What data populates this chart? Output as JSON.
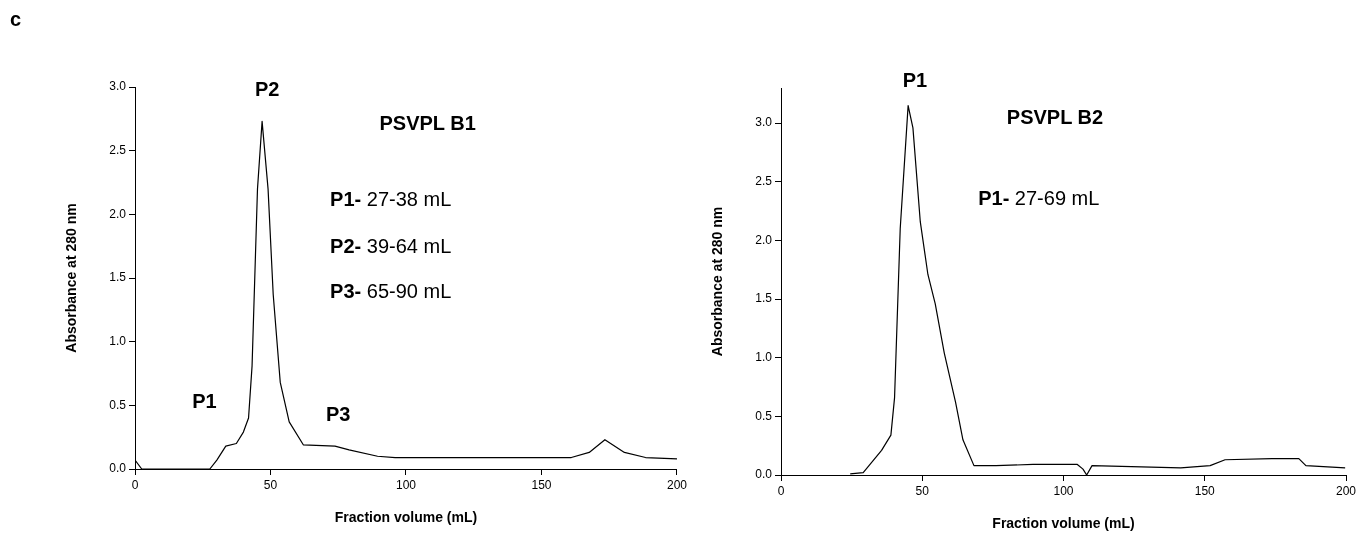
{
  "chart_data": [
    {
      "type": "line",
      "subtitle": "c",
      "title": "PSVPL B1",
      "xlabel": "Fraction volume (mL)",
      "ylabel": "Absorbance at 280 nm",
      "x": [
        0,
        2.5,
        10,
        20,
        27.6,
        30.2,
        33.5,
        37.4,
        40,
        41.9,
        43.2,
        45.2,
        46.9,
        49.1,
        51,
        53.6,
        56.9,
        62.1,
        73.8,
        79,
        89.5,
        96,
        120,
        161,
        167.6,
        173.4,
        180.6,
        188.4,
        200
      ],
      "series": [
        {
          "color": "#000000",
          "values": [
            0.07,
            0,
            0,
            0,
            0,
            0.07,
            0.18,
            0.2,
            0.29,
            0.4,
            0.81,
            2.2,
            2.73,
            2.2,
            1.37,
            0.68,
            0.37,
            0.19,
            0.18,
            0.15,
            0.1,
            0.09,
            0.09,
            0.09,
            0.13,
            0.23,
            0.13,
            0.09,
            0.08
          ]
        }
      ],
      "xlim": [
        0,
        200
      ],
      "xticks": [
        0,
        50,
        100,
        150,
        200
      ],
      "ylim": [
        0,
        3
      ],
      "yticks": [
        {
          "value": 0,
          "label": "0.0"
        },
        {
          "value": 0.5,
          "label": "0.5"
        },
        {
          "value": 1,
          "label": "1.0"
        },
        {
          "value": 1.5,
          "label": "1.5"
        },
        {
          "value": 2,
          "label": "2.0"
        },
        {
          "value": 2.5,
          "label": "2.5"
        },
        {
          "value": 3,
          "label": "3.0"
        }
      ],
      "grid": false,
      "legend": false,
      "marker": "none",
      "line_style": "solid",
      "annotations": [
        "P2",
        "P1",
        "P3",
        "P1- 27-38 mL",
        "P2- 39-64 mL",
        "P3- 65-90 mL"
      ]
    },
    {
      "type": "line",
      "title": "PSVPL B2",
      "xlabel": "Fraction volume (mL)",
      "ylabel": "Absorbance at 280 nm",
      "x": [
        24.5,
        29.1,
        35.6,
        38.9,
        40.2,
        42.2,
        45,
        46.7,
        49.3,
        52,
        54.6,
        57.8,
        61.8,
        64.4,
        68.3,
        76.1,
        89.2,
        104.9,
        106.9,
        108.2,
        110.1,
        141.5,
        151.9,
        157.2,
        174.2,
        183.3,
        185.8,
        199.7
      ],
      "series": [
        {
          "color": "#000000",
          "values": [
            0.01,
            0.02,
            0.21,
            0.34,
            0.66,
            2.1,
            3.15,
            2.96,
            2.16,
            1.71,
            1.46,
            1.04,
            0.62,
            0.3,
            0.08,
            0.08,
            0.09,
            0.09,
            0.05,
            0,
            0.08,
            0.06,
            0.08,
            0.13,
            0.14,
            0.14,
            0.08,
            0.06
          ]
        }
      ],
      "xlim": [
        0,
        200
      ],
      "xticks": [
        0,
        50,
        100,
        150,
        200
      ],
      "ylim": [
        0,
        3.3
      ],
      "yticks": [
        {
          "value": 0,
          "label": "0.0"
        },
        {
          "value": 0.5,
          "label": "0.5"
        },
        {
          "value": 1,
          "label": "1.0"
        },
        {
          "value": 1.5,
          "label": "1.5"
        },
        {
          "value": 2,
          "label": "2.0"
        },
        {
          "value": 2.5,
          "label": "2.5"
        },
        {
          "value": 3,
          "label": "3.0"
        }
      ],
      "grid": false,
      "legend": false,
      "marker": "none",
      "line_style": "solid",
      "annotations": [
        "P1",
        "P1- 27-69 mL"
      ]
    }
  ]
}
